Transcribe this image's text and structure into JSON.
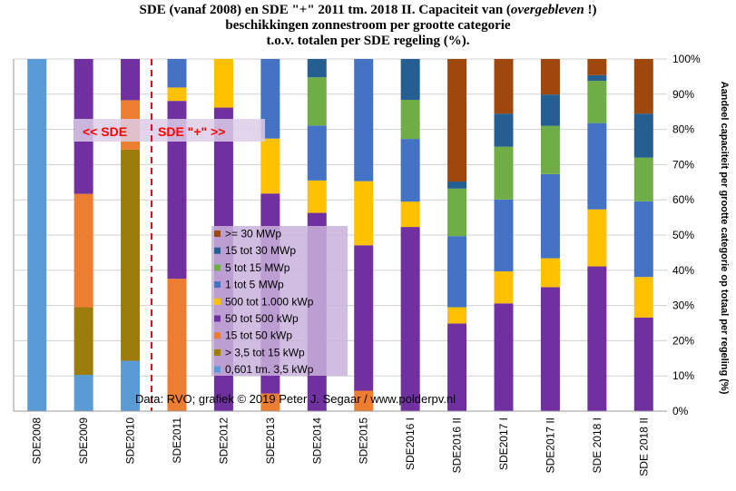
{
  "chart_data": {
    "type": "bar",
    "stacked": true,
    "title": {
      "line1_prefix": "SDE (vanaf 2008) en SDE \"+\" 2011 tm. 2018 II. Capaciteit van (",
      "line1_italic": "overgebleven",
      "line1_suffix": " !)",
      "line2": "beschikkingen  zonnestroom per grootte categorie",
      "line3": "t.o.v. totalen per SDE regeling (%)."
    },
    "ylabel": "Aandeel capaciteit per grootte categorie op totaal per regeling (%)",
    "xlabel": "",
    "ylim": [
      0,
      100
    ],
    "ytick_values": [
      0,
      10,
      20,
      30,
      40,
      50,
      60,
      70,
      80,
      90,
      100
    ],
    "ytick_labels": [
      "0%",
      "10%",
      "20%",
      "30%",
      "40%",
      "50%",
      "60%",
      "70%",
      "80%",
      "90%",
      "100%"
    ],
    "grid": "horizontal",
    "legend_position": "center",
    "categories": [
      "SDE2008",
      "SDE2009",
      "SDE2010",
      "SDE2011",
      "SDE2012",
      "SDE2013",
      "SDE2014",
      "SDE2015",
      "SDE2016 I",
      "SDE2016 II",
      "SDE2017 I",
      "SDE2017 II",
      "SDE 2018 I",
      "SDE 2018 II"
    ],
    "series": [
      {
        "name": "0,601 tm. 3,5 kWp",
        "color": "#5b9bd5",
        "values": [
          100,
          10.3,
          14.3,
          0,
          0,
          0,
          0,
          0,
          0,
          0,
          0,
          0,
          0,
          0
        ]
      },
      {
        "name": "> 3,5 tot 15 kWp",
        "color": "#9c7d0c",
        "values": [
          0,
          19.2,
          60.0,
          0,
          0,
          0,
          0,
          0,
          0,
          0,
          0,
          0,
          0,
          0
        ]
      },
      {
        "name": "15 tot 50 kWp",
        "color": "#ed7d31",
        "values": [
          0,
          32.2,
          14.0,
          37.6,
          0,
          5.0,
          0,
          5.8,
          0,
          0,
          0,
          0,
          0,
          0
        ]
      },
      {
        "name": "50 tot 500 kWp",
        "color": "#7030a0",
        "values": [
          0,
          38.3,
          11.7,
          50.5,
          86.2,
          56.8,
          56.3,
          41.3,
          52.3,
          24.9,
          30.6,
          35.2,
          41.1,
          26.6
        ]
      },
      {
        "name": "500 tot 1.000 kWp",
        "color": "#ffc000",
        "values": [
          0,
          0,
          0,
          3.8,
          13.8,
          15.6,
          9.2,
          18.2,
          7.2,
          4.6,
          9.1,
          8.2,
          16.2,
          11.5
        ]
      },
      {
        "name": "1 tot 5 MWp",
        "color": "#4472c4",
        "values": [
          0,
          0,
          0,
          8.1,
          0,
          22.6,
          15.6,
          34.7,
          17.8,
          20.2,
          20.4,
          23.9,
          24.5,
          21.5
        ]
      },
      {
        "name": "5 tot 15 MWp",
        "color": "#70ad47",
        "values": [
          0,
          0,
          0,
          0,
          0,
          0,
          13.7,
          0,
          11.1,
          13.5,
          15.0,
          13.7,
          12.0,
          12.4
        ]
      },
      {
        "name": "15 tot 30 MWp",
        "color": "#255e91",
        "values": [
          0,
          0,
          0,
          0,
          0,
          0,
          5.2,
          0,
          11.6,
          2.0,
          9.4,
          8.9,
          1.6,
          12.5
        ]
      },
      {
        "name": ">= 30 MWp",
        "color": "#9e480e",
        "values": [
          0,
          0,
          0,
          0,
          0,
          0,
          0,
          0,
          0,
          34.8,
          15.5,
          10.1,
          4.6,
          15.5
        ]
      }
    ],
    "legend_order": [
      ">= 30 MWp",
      "15 tot 30 MWp",
      "5 tot 15 MWp",
      "1 tot 5 MWp",
      "500 tot 1.000 kWp",
      "50 tot 500 kWp",
      "15 tot 50 kWp",
      "> 3,5 tot 15 kWp",
      "0,601 tm. 3,5 kWp"
    ],
    "annotations": {
      "sde_label": "<<  SDE",
      "sde_plus_label": "SDE \"+\"  >>",
      "source": "Data: RVO;  grafiek © 2019 Peter J. Segaar / www.polderpv.nl",
      "divider_between": [
        "SDE2010",
        "SDE2011"
      ]
    }
  }
}
